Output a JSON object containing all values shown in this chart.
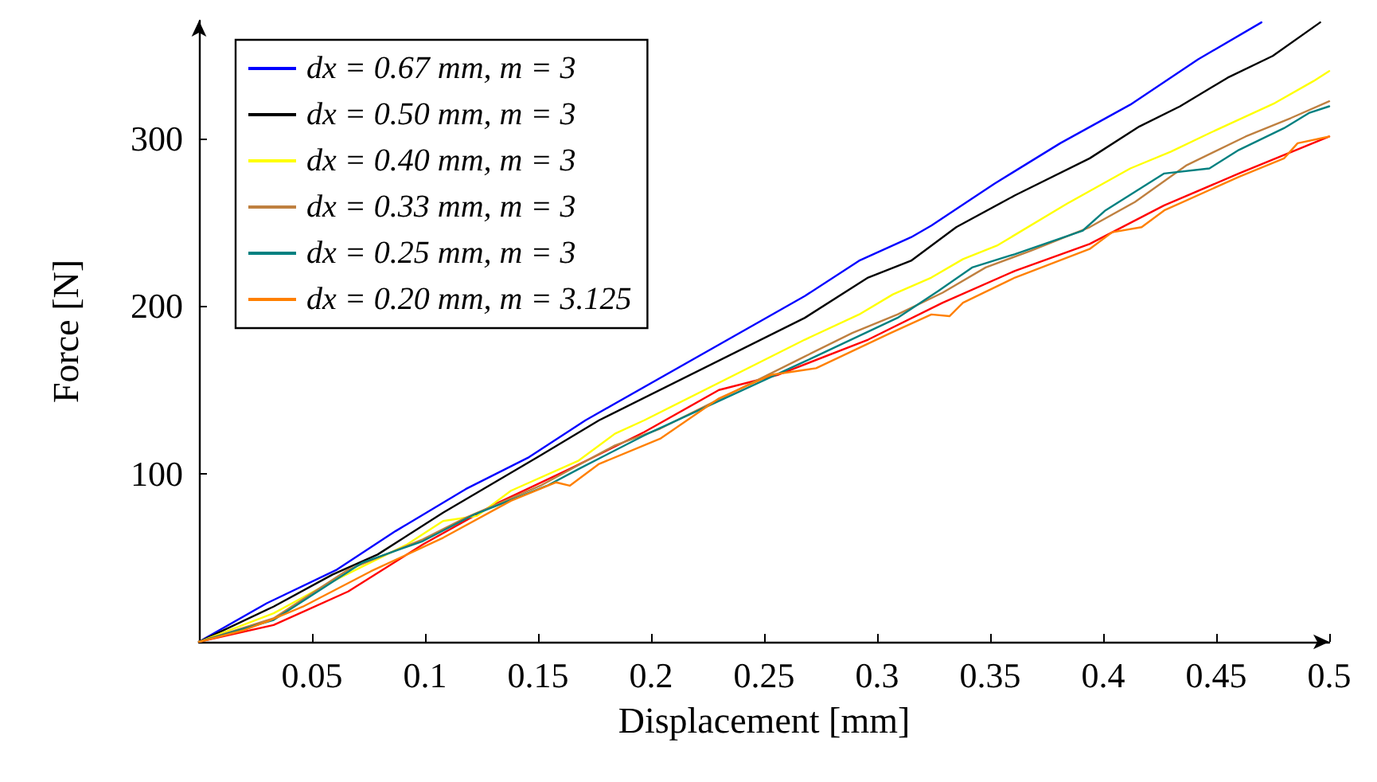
{
  "chart_data": {
    "type": "line",
    "xlabel": "Displacement [mm]",
    "ylabel": "Force [N]",
    "xlim": [
      0,
      0.5
    ],
    "ylim": [
      0,
      370
    ],
    "xticks": [
      0.05,
      0.1,
      0.15,
      0.2,
      0.25,
      0.3,
      0.35,
      0.4,
      0.45,
      0.5
    ],
    "yticks": [
      100,
      200,
      300
    ],
    "legend": "top left",
    "marker": "none",
    "line_style": "solid",
    "series": [
      {
        "color": "#ff0000",
        "x": [
          0,
          0.033,
          0.066,
          0.099,
          0.131,
          0.164,
          0.197,
          0.23,
          0.256,
          0.296,
          0.329,
          0.361,
          0.394,
          0.427,
          0.46,
          0.5
        ],
        "values": [
          0,
          10,
          30,
          58,
          82,
          103,
          125,
          150,
          159,
          180,
          202,
          221,
          237,
          260,
          279,
          301
        ]
      },
      {
        "name": "dx = 0.67 mm, m = 3",
        "color": "#0000ff",
        "x": [
          0,
          0.03,
          0.061,
          0.087,
          0.118,
          0.146,
          0.171,
          0.268,
          0.292,
          0.315,
          0.324,
          0.352,
          0.381,
          0.412,
          0.442,
          0.47
        ],
        "values": [
          0,
          23,
          43,
          66,
          91,
          110,
          132,
          206,
          227,
          241,
          248,
          273,
          297,
          320,
          347,
          369
        ]
      },
      {
        "name": "dx = 0.50 mm, m = 3",
        "color": "#000000",
        "x": [
          0,
          0.033,
          0.059,
          0.079,
          0.108,
          0.151,
          0.177,
          0.268,
          0.296,
          0.315,
          0.335,
          0.361,
          0.394,
          0.416,
          0.434,
          0.455,
          0.475,
          0.496
        ],
        "values": [
          0,
          21,
          40,
          52,
          77,
          111,
          132,
          193,
          217,
          227,
          247,
          266,
          288,
          307,
          319,
          336,
          349,
          369
        ]
      },
      {
        "name": "dx = 0.40 mm, m = 3",
        "color": "#ffff00",
        "x": [
          0,
          0.033,
          0.059,
          0.092,
          0.108,
          0.123,
          0.138,
          0.168,
          0.184,
          0.197,
          0.268,
          0.292,
          0.307,
          0.324,
          0.338,
          0.353,
          0.384,
          0.412,
          0.43,
          0.447,
          0.476,
          0.493,
          0.5
        ],
        "values": [
          0,
          17,
          36,
          58,
          72,
          75,
          90,
          108,
          124,
          132,
          180,
          195,
          207,
          217,
          228,
          236,
          261,
          282,
          292,
          303,
          321,
          334,
          340
        ]
      },
      {
        "name": "dx = 0.33 mm, m = 3",
        "color": "#bf8040",
        "x": [
          0,
          0.033,
          0.066,
          0.099,
          0.118,
          0.151,
          0.184,
          0.204,
          0.268,
          0.289,
          0.309,
          0.329,
          0.348,
          0.368,
          0.394,
          0.414,
          0.437,
          0.463,
          0.483,
          0.5
        ],
        "values": [
          0,
          14,
          43,
          61,
          74,
          93,
          117,
          127,
          170,
          184,
          195,
          208,
          223,
          233,
          247,
          262,
          284,
          301,
          312,
          322
        ]
      },
      {
        "name": "dx = 0.25 mm, m = 3",
        "color": "#008080",
        "x": [
          0,
          0.033,
          0.072,
          0.099,
          0.122,
          0.154,
          0.168,
          0.197,
          0.268,
          0.309,
          0.327,
          0.342,
          0.361,
          0.391,
          0.401,
          0.427,
          0.447,
          0.46,
          0.48,
          0.491,
          0.5
        ],
        "values": [
          0,
          13,
          47,
          60,
          76,
          93,
          103,
          123,
          167,
          193,
          209,
          223,
          231,
          245,
          257,
          279,
          282,
          293,
          306,
          315,
          319
        ]
      },
      {
        "name": "dx = 0.20 mm, m = 3.125",
        "color": "#ff8000",
        "x": [
          0,
          0.02,
          0.03,
          0.046,
          0.076,
          0.108,
          0.138,
          0.158,
          0.164,
          0.177,
          0.204,
          0.23,
          0.253,
          0.273,
          0.306,
          0.324,
          0.332,
          0.338,
          0.361,
          0.394,
          0.404,
          0.417,
          0.427,
          0.46,
          0.48,
          0.486,
          0.5
        ],
        "values": [
          0,
          7,
          12,
          21,
          42,
          62,
          84,
          95,
          93,
          106,
          121,
          145,
          159,
          163,
          184,
          195,
          194,
          202,
          217,
          234,
          244,
          247,
          257,
          277,
          288,
          297,
          301
        ]
      }
    ]
  }
}
